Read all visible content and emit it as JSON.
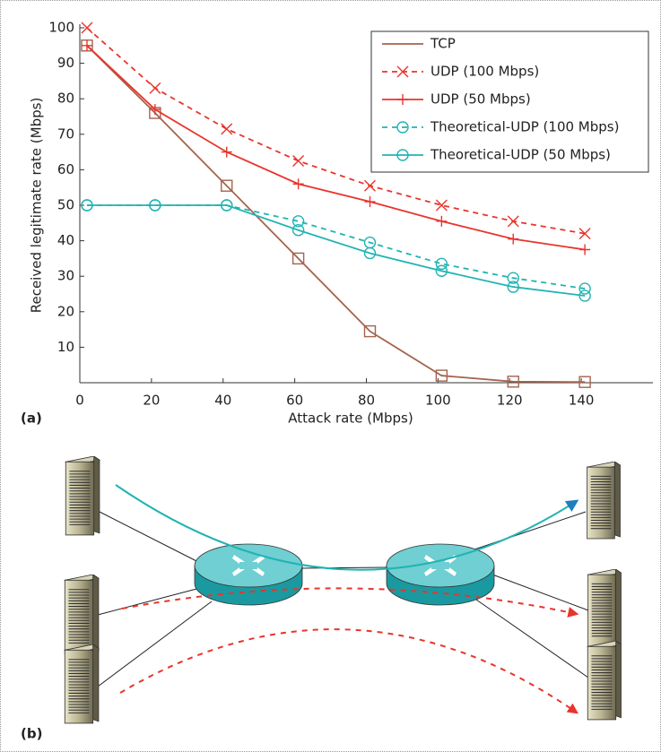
{
  "chart_data": {
    "type": "line",
    "xlabel": "Attack rate (Mbps)",
    "ylabel": "Received legitimate rate (Mbps)",
    "x": [
      2,
      21,
      41,
      61,
      81,
      101,
      121,
      141
    ],
    "series": [
      {
        "name": "TCP",
        "color": "#a5634c",
        "dash": false,
        "marker": "square",
        "values": [
          95,
          76,
          55.5,
          35,
          14.5,
          2,
          0.3,
          0.2
        ]
      },
      {
        "name": "UDP (100 Mbps)",
        "color": "#e8352c",
        "dash": true,
        "marker": "x",
        "values": [
          100,
          83,
          71.5,
          62.5,
          55.5,
          50,
          45.5,
          42
        ]
      },
      {
        "name": "UDP (50 Mbps)",
        "color": "#e8352c",
        "dash": false,
        "marker": "plus",
        "values": [
          95,
          77,
          65,
          56,
          51,
          45.5,
          40.5,
          37.5
        ]
      },
      {
        "name": "Theoretical-UDP (100 Mbps)",
        "color": "#22b3b3",
        "dash": true,
        "marker": "circle",
        "values": [
          50,
          50,
          50,
          45.5,
          39.5,
          33.5,
          29.5,
          26.5
        ]
      },
      {
        "name": "Theoretical-UDP (50 Mbps)",
        "color": "#22b3b3",
        "dash": false,
        "marker": "circle",
        "values": [
          50,
          50,
          50,
          43,
          36.5,
          31.5,
          27,
          24.5
        ]
      }
    ],
    "xlim": [
      0,
      160
    ],
    "ylim": [
      0,
      100
    ],
    "xticks": [
      0,
      20,
      40,
      60,
      80,
      100,
      120,
      140
    ],
    "yticks": [
      10,
      20,
      30,
      40,
      50,
      60,
      70,
      80,
      90,
      100
    ],
    "legend": "upper right",
    "grid": false
  },
  "panel_labels": [
    "(a)",
    "(b)"
  ]
}
